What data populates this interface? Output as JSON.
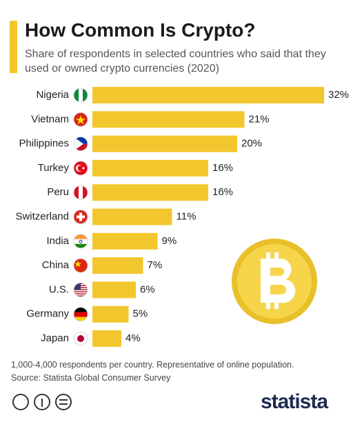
{
  "chart_data": {
    "type": "bar",
    "orientation": "horizontal",
    "title": "How Common Is Crypto?",
    "subtitle": "Share of respondents in selected countries who said that they used or owned crypto currencies (2020)",
    "categories": [
      "Nigeria",
      "Vietnam",
      "Philippines",
      "Turkey",
      "Peru",
      "Switzerland",
      "India",
      "China",
      "U.S.",
      "Germany",
      "Japan"
    ],
    "values": [
      32,
      21,
      20,
      16,
      16,
      11,
      9,
      7,
      6,
      5,
      4
    ],
    "value_labels": [
      "32%",
      "21%",
      "20%",
      "16%",
      "16%",
      "11%",
      "9%",
      "7%",
      "6%",
      "5%",
      "4%"
    ],
    "color": "#f2c72e",
    "note": "1,000-4,000 respondents per country. Representative of online population.",
    "source": "Source: Statista Global Consumer Survey",
    "brand": "statista"
  }
}
